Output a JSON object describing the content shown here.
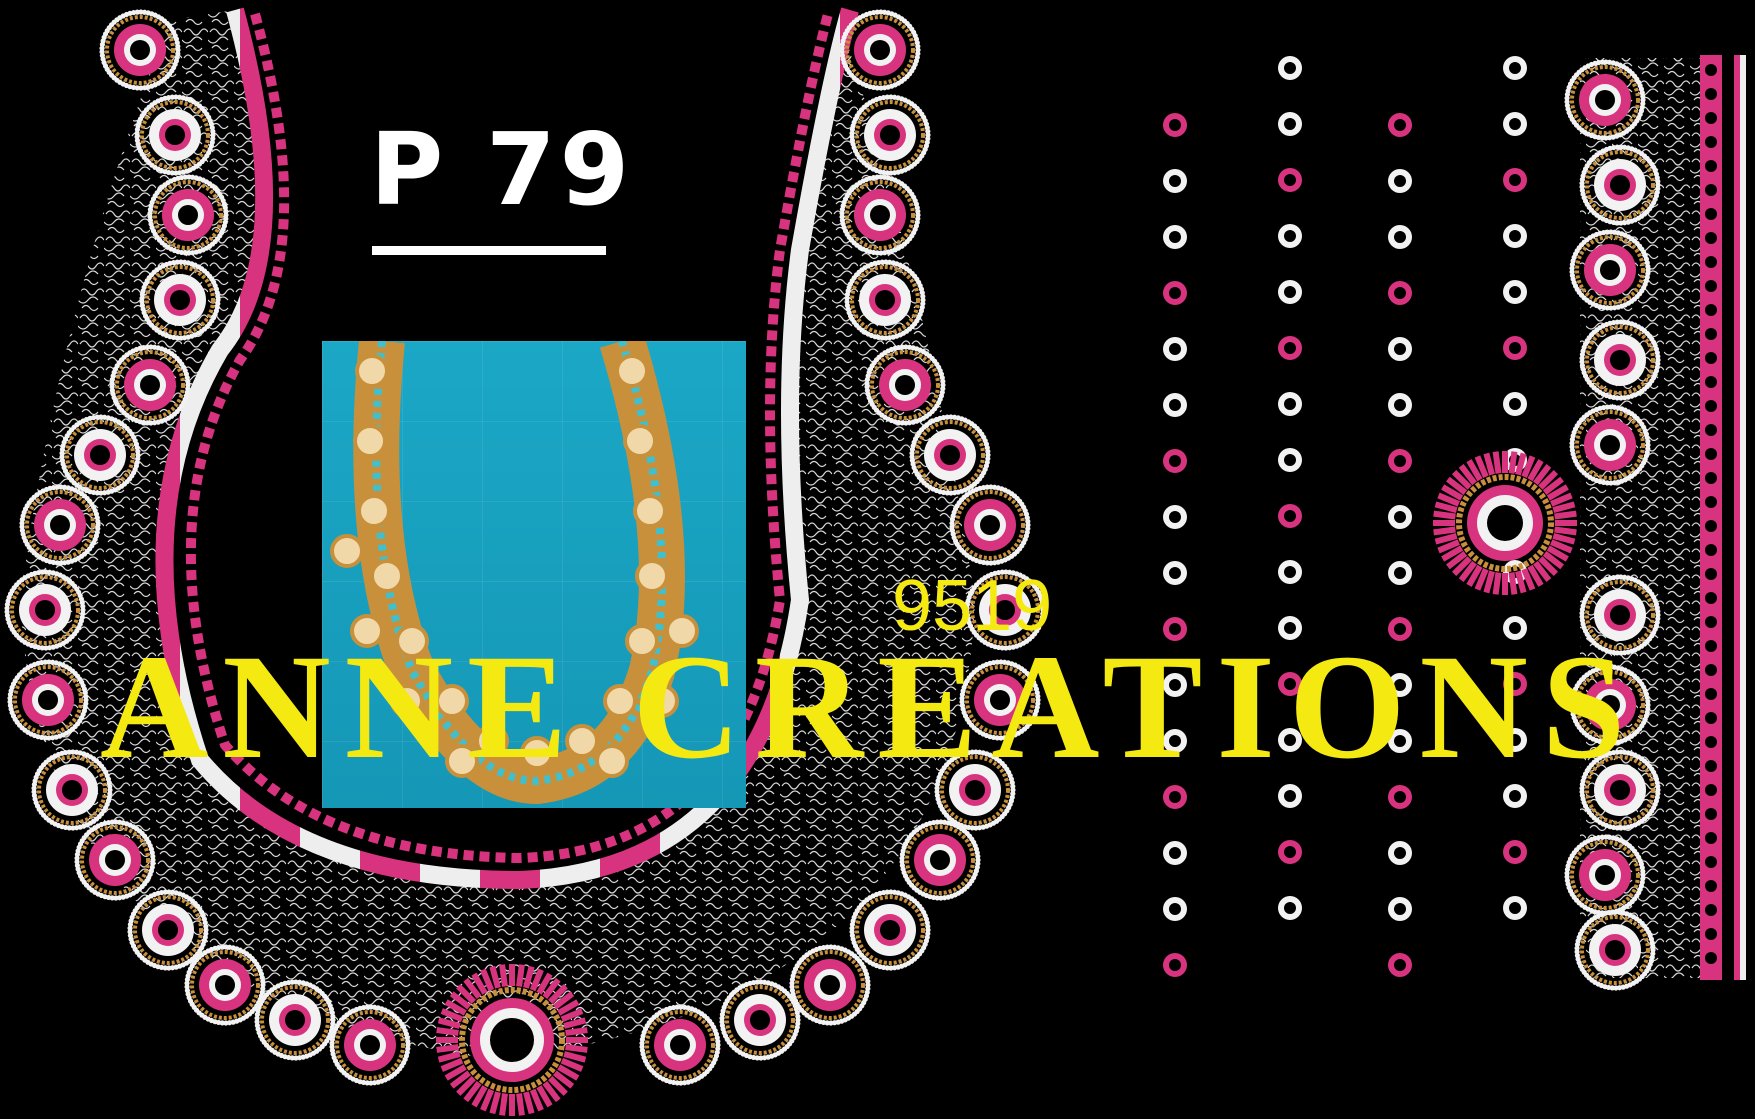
{
  "design": {
    "code": "P 79",
    "number": "9519",
    "watermark": "ANNE CREATIONS"
  },
  "colors": {
    "background": "#000000",
    "pink": "#d8337f",
    "white": "#f2f2f2",
    "gold": "#c8903a",
    "watermark": "#f4ea12",
    "preview_bg": "#1ba7c6"
  },
  "icons": [
    "embroidery-neckline-icon",
    "embroidery-sleeve-border-icon",
    "garment-preview-photo-icon"
  ]
}
